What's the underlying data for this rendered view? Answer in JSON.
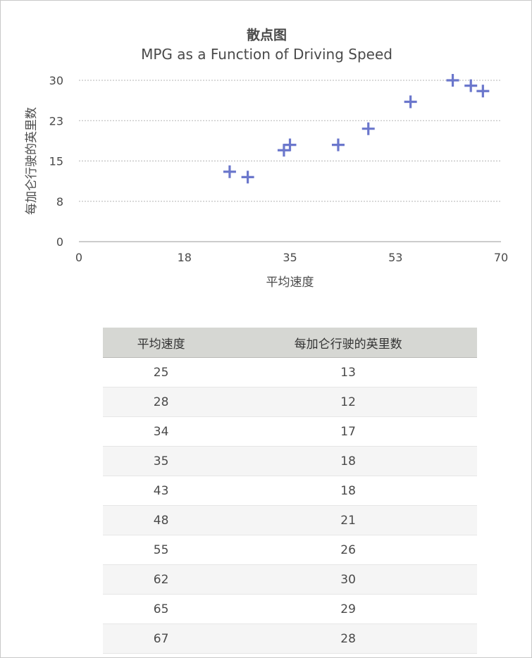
{
  "chart_data": {
    "type": "scatter",
    "title": "散点图",
    "subtitle": "MPG as a Function of Driving Speed",
    "xlabel": "平均速度",
    "ylabel": "每加仑行驶的英里数",
    "xlim": [
      0,
      70
    ],
    "ylim": [
      0,
      30
    ],
    "xticks": [
      "0",
      "18",
      "35",
      "53",
      "70"
    ],
    "yticks": [
      "0",
      "8",
      "15",
      "23",
      "30"
    ],
    "grid": "horizontal dotted",
    "marker": "plus",
    "color": "#6b77cc",
    "points": [
      {
        "x": 25,
        "y": 13
      },
      {
        "x": 28,
        "y": 12
      },
      {
        "x": 34,
        "y": 17
      },
      {
        "x": 35,
        "y": 18
      },
      {
        "x": 43,
        "y": 18
      },
      {
        "x": 48,
        "y": 21
      },
      {
        "x": 55,
        "y": 26
      },
      {
        "x": 62,
        "y": 30
      },
      {
        "x": 65,
        "y": 29
      },
      {
        "x": 67,
        "y": 28
      }
    ]
  },
  "table": {
    "headers": [
      "平均速度",
      "每加仑行驶的英里数"
    ],
    "rows": [
      [
        "25",
        "13"
      ],
      [
        "28",
        "12"
      ],
      [
        "34",
        "17"
      ],
      [
        "35",
        "18"
      ],
      [
        "43",
        "18"
      ],
      [
        "48",
        "21"
      ],
      [
        "55",
        "26"
      ],
      [
        "62",
        "30"
      ],
      [
        "65",
        "29"
      ],
      [
        "67",
        "28"
      ]
    ]
  }
}
